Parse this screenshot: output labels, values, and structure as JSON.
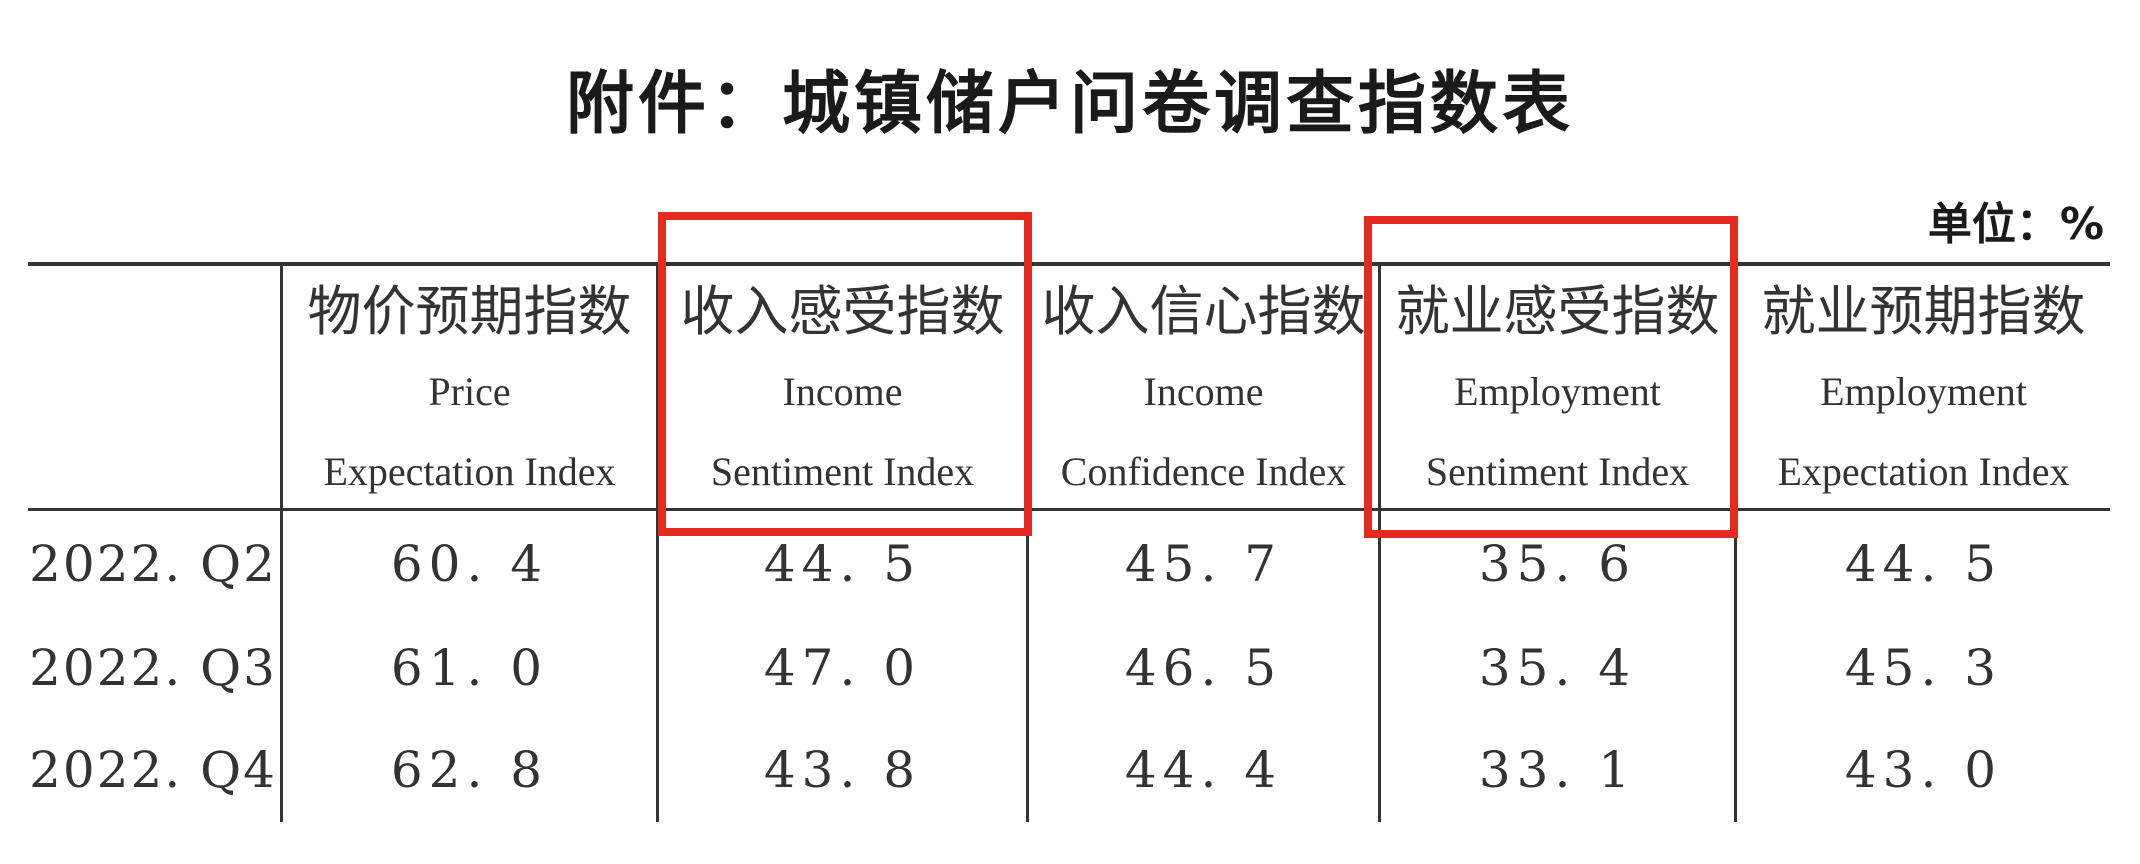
{
  "title": "附件：城镇储户问卷调查指数表",
  "unit": "单位：%",
  "table": {
    "columns": [
      {
        "zh": "物价预期指数",
        "en1": "Price",
        "en2": "Expectation Index"
      },
      {
        "zh": "收入感受指数",
        "en1": "Income",
        "en2": "Sentiment Index"
      },
      {
        "zh": "收入信心指数",
        "en1": "Income",
        "en2": "Confidence Index"
      },
      {
        "zh": "就业感受指数",
        "en1": "Employment",
        "en2": "Sentiment Index"
      },
      {
        "zh": "就业预期指数",
        "en1": "Employment",
        "en2": "Expectation Index"
      }
    ],
    "rows": [
      {
        "label": "2022. Q2",
        "values": [
          "60. 4",
          "44. 5",
          "45. 7",
          "35. 6",
          "44. 5"
        ]
      },
      {
        "label": "2022. Q3",
        "values": [
          "61. 0",
          "47. 0",
          "46. 5",
          "35. 4",
          "45. 3"
        ]
      },
      {
        "label": "2022. Q4",
        "values": [
          "62. 8",
          "43. 8",
          "44. 4",
          "33. 1",
          "43. 0"
        ]
      }
    ]
  },
  "highlight_color": "#e52a21"
}
